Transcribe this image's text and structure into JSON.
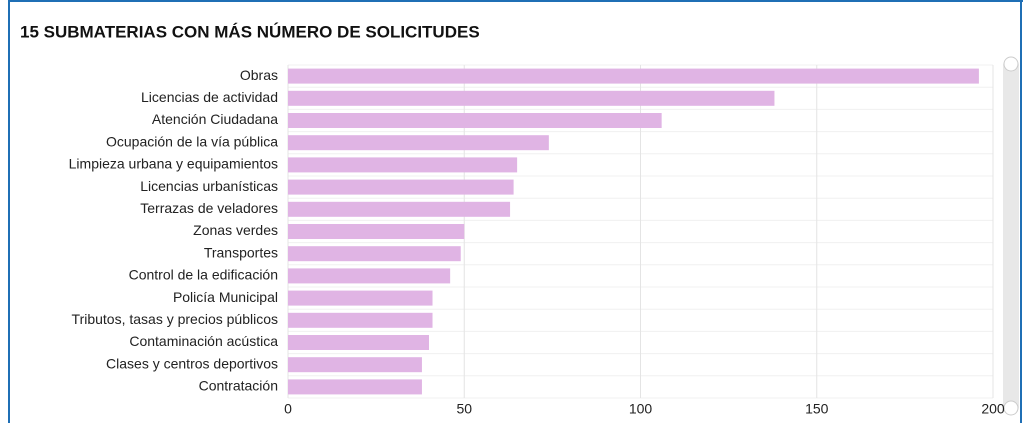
{
  "chart_data": {
    "type": "barh",
    "title": "15 SUBMATERIAS CON MÁS NÚMERO DE SOLICITUDES",
    "categories": [
      "Obras",
      "Licencias de actividad",
      "Atención Ciudadana",
      "Ocupación de la vía pública",
      "Limpieza urbana y equipamientos",
      "Licencias urbanísticas",
      "Terrazas de veladores",
      "Zonas verdes",
      "Transportes",
      "Control de la edificación",
      "Policía Municipal",
      "Tributos, tasas y precios públicos",
      "Contaminación acústica",
      "Clases y centros deportivos",
      "Contratación"
    ],
    "values": [
      196,
      138,
      106,
      74,
      65,
      64,
      63,
      50,
      49,
      46,
      41,
      41,
      40,
      38,
      38
    ],
    "color": "#e0b4e4",
    "xlim": [
      0,
      200
    ],
    "xticks": [
      0,
      50,
      100,
      150,
      200
    ],
    "grid": true
  }
}
